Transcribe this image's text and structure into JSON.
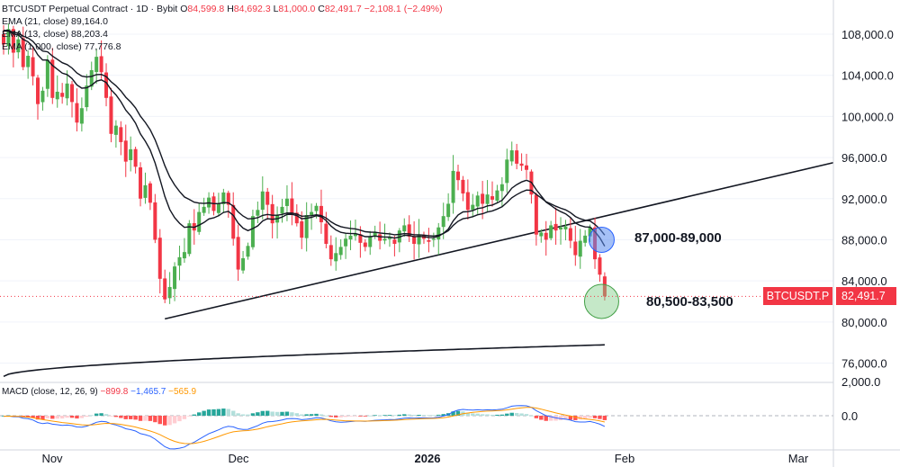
{
  "legend": {
    "symbol": "BTCUSDT Perpetual Contract · 1D · Bybit",
    "ohlc": [
      {
        "label": "O",
        "value": "84,599.8"
      },
      {
        "label": "H",
        "value": "84,692.3"
      },
      {
        "label": "L",
        "value": "81,000.0"
      },
      {
        "label": "C",
        "value": "82,491.7"
      }
    ],
    "change": "−2,108.1 (−2.49%)",
    "ema21": {
      "label": "EMA (21, close)",
      "value": "89,164.0"
    },
    "ema13": {
      "label": "EMA (13, close)",
      "value": "88,203.4"
    },
    "ema1000": {
      "label": "EMA (1,000, close)",
      "value": "77,776.8"
    }
  },
  "macd": {
    "label": "MACD (close, 12, 26, 9)",
    "histogram": "−899.8",
    "macd_line": "−1,465.7",
    "signal": "−565.9"
  },
  "annotations": {
    "upper_zone": "87,000-89,000",
    "lower_zone": "80,500-83,500"
  },
  "price_tag": {
    "symbol": "BTCUSDT.P",
    "price": "82,491.7"
  },
  "colors": {
    "up": "#4caf50",
    "down": "#f23645",
    "zone_blue": "#5b8def",
    "zone_green": "#7fcc84",
    "macd_line": "#2962ff",
    "signal_line": "#ff9800"
  },
  "chart_data": {
    "type": "candlestick",
    "title": "BTCUSDT Perpetual Contract · 1D · Bybit",
    "x_ticks": [
      "Nov",
      "Dec",
      "2026",
      "Feb",
      "Mar"
    ],
    "y_ticks": [
      "108,000.0",
      "104,000.0",
      "100,000.0",
      "96,000.0",
      "92,000.0",
      "88,000.0",
      "84,000.0",
      "80,000.0",
      "76,000.0"
    ],
    "macd_y_ticks": [
      "2,000.0",
      "0.0"
    ],
    "ylim": [
      73500,
      110000
    ],
    "bars_total": 124,
    "closes": [
      107000,
      108500,
      106200,
      107500,
      104800,
      105900,
      103900,
      101200,
      102500,
      105500,
      101800,
      102400,
      101900,
      103200,
      101400,
      99400,
      100800,
      103000,
      104500,
      105800,
      104300,
      101800,
      98300,
      99100,
      97500,
      95600,
      96800,
      95100,
      92000,
      93300,
      91600,
      88000,
      84200,
      82200,
      83400,
      85400,
      86300,
      86800,
      89600,
      88900,
      90700,
      91200,
      92100,
      90800,
      91500,
      92600,
      91400,
      88100,
      85100,
      86200,
      87400,
      90300,
      90900,
      92700,
      91400,
      89600,
      90400,
      91200,
      92000,
      90500,
      89600,
      88200,
      90400,
      90700,
      91300,
      89700,
      87600,
      86100,
      86700,
      87300,
      88100,
      88400,
      88600,
      87700,
      87300,
      88300,
      88700,
      87900,
      88100,
      88200,
      87600,
      88900,
      89400,
      88300,
      87600,
      88500,
      88100,
      87800,
      88100,
      89200,
      90300,
      91500,
      94700,
      93800,
      92500,
      90900,
      91400,
      92300,
      91500,
      92400,
      91900,
      92800,
      93400,
      95800,
      96700,
      95400,
      95200,
      94800,
      92400,
      88500,
      88700,
      88000,
      89400,
      88900,
      89200,
      89300,
      87900,
      86500,
      87900,
      88400,
      89200,
      86100,
      84600,
      82491.7
    ],
    "ema13_last": 88203.4,
    "ema21_last": 89164.0,
    "ema1000_last": 77776.8,
    "trendlines": [
      {
        "name": "rising support",
        "from": {
          "bar": 33,
          "price": 80300
        },
        "to": {
          "bar": "Mar+",
          "price": 95500
        }
      }
    ],
    "zones": [
      {
        "label": "87,000-89,000",
        "center": 88000,
        "color": "blue"
      },
      {
        "label": "80,500-83,500",
        "center": 82000,
        "color": "green"
      }
    ],
    "macd_last": {
      "histogram": -899.8,
      "macd": -1465.7,
      "signal": -565.9
    }
  }
}
